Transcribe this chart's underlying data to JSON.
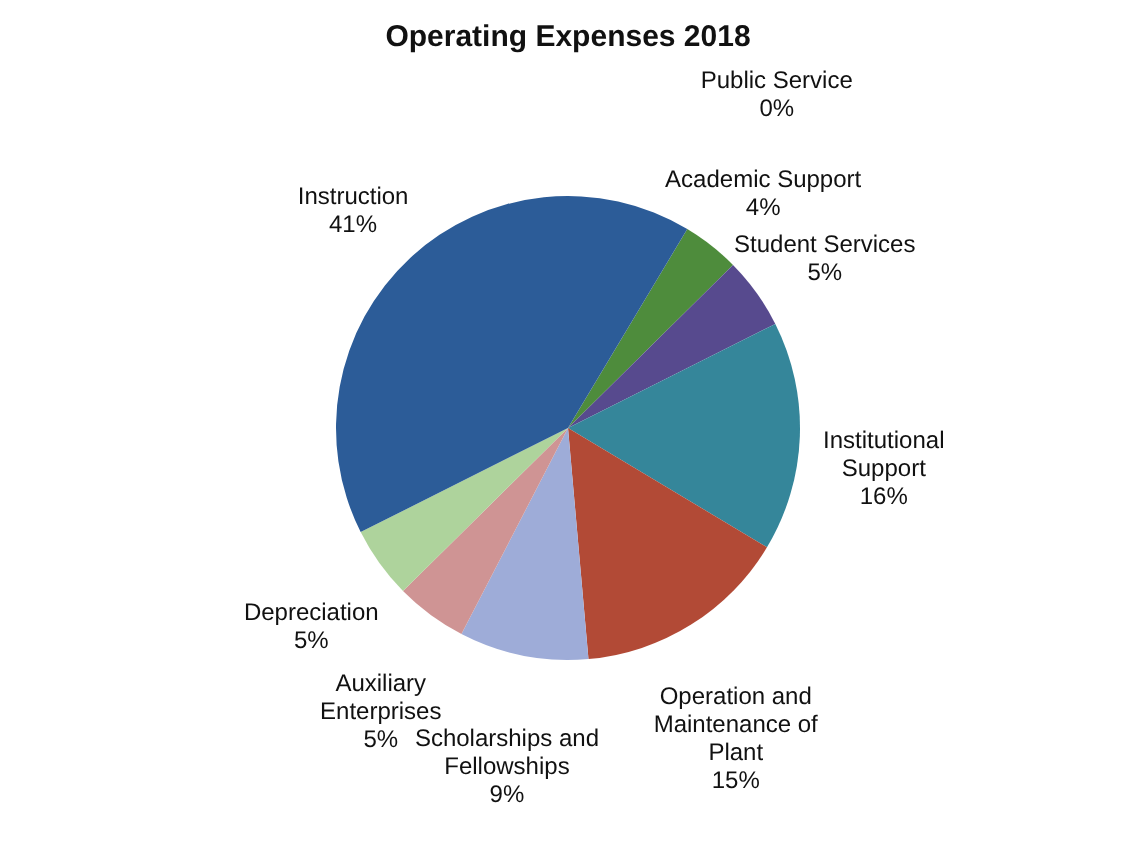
{
  "chart_data": {
    "type": "pie",
    "title": "Operating Expenses 2018",
    "categories": [
      "Public Service",
      "Academic Support",
      "Student Services",
      "Institutional Support",
      "Operation and Maintenance of Plant",
      "Scholarships and Fellowships",
      "Auxiliary Enterprises",
      "Depreciation",
      "Instruction"
    ],
    "values": [
      0,
      4,
      5,
      16,
      15,
      9,
      5,
      5,
      41
    ],
    "value_labels": [
      "0%",
      "4%",
      "5%",
      "16%",
      "15%",
      "9%",
      "5%",
      "5%",
      "41%"
    ],
    "colors": [
      "#e0a040",
      "#4e8c3c",
      "#574a8e",
      "#35869a",
      "#b24a36",
      "#9eacd8",
      "#cf9494",
      "#aed39c",
      "#2c5c98"
    ],
    "legend": false
  }
}
